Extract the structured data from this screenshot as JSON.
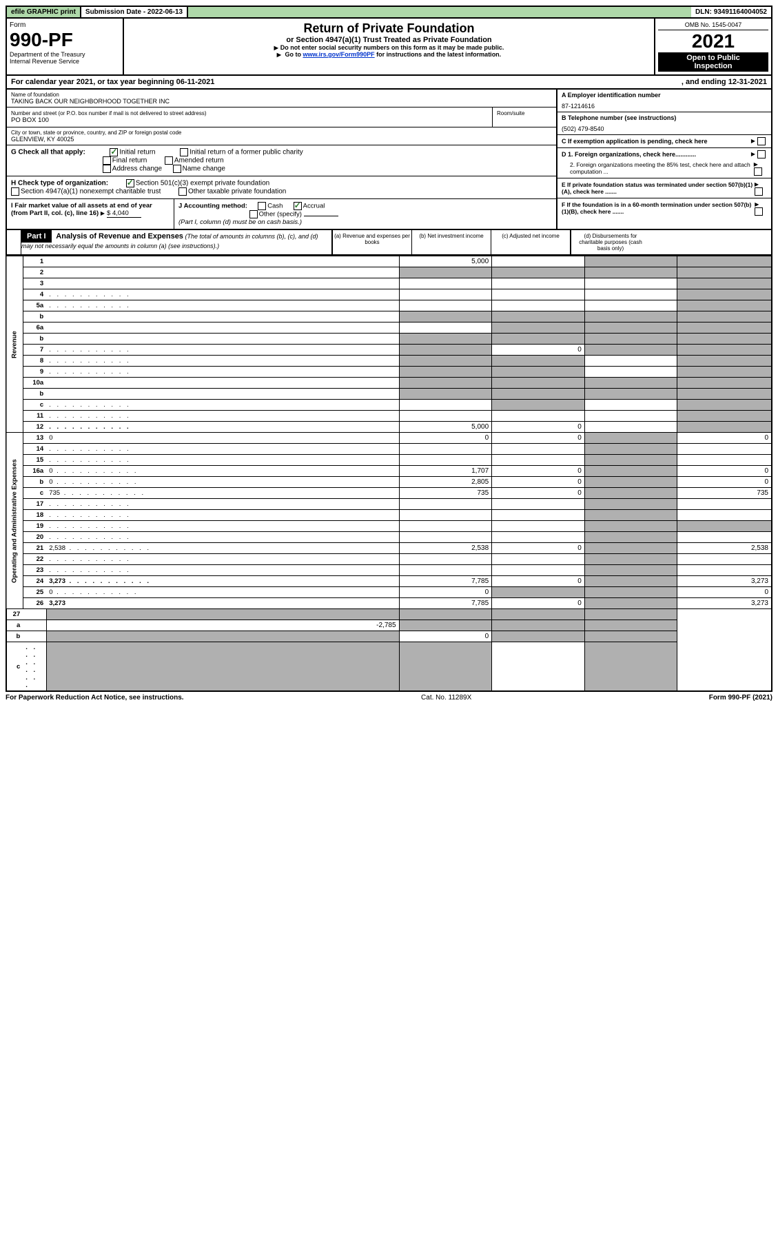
{
  "topbar": {
    "efile": "efile GRAPHIC print",
    "submission_label": "Submission Date - ",
    "submission_date": "2022-06-13",
    "dln_label": "DLN: ",
    "dln": "93491164004052"
  },
  "header": {
    "form_word": "Form",
    "form_num": "990-PF",
    "dept1": "Department of the Treasury",
    "dept2": "Internal Revenue Service",
    "title": "Return of Private Foundation",
    "subtitle": "or Section 4947(a)(1) Trust Treated as Private Foundation",
    "note1": "Do not enter social security numbers on this form as it may be made public.",
    "note2_a": "Go to ",
    "note2_link": "www.irs.gov/Form990PF",
    "note2_b": " for instructions and the latest information.",
    "omb": "OMB No. 1545-0047",
    "year": "2021",
    "open1": "Open to Public",
    "open2": "Inspection"
  },
  "calendar": {
    "text_a": "For calendar year 2021, or tax year beginning ",
    "begin": "06-11-2021",
    "text_b": ", and ending ",
    "end": "12-31-2021"
  },
  "foundation": {
    "name_label": "Name of foundation",
    "name": "TAKING BACK OUR NEIGHBORHOOD TOGETHER INC",
    "addr_label": "Number and street (or P.O. box number if mail is not delivered to street address)",
    "room_label": "Room/suite",
    "addr": "PO BOX 100",
    "city_label": "City or town, state or province, country, and ZIP or foreign postal code",
    "city": "GLENVIEW, KY  40025",
    "ein_label": "A Employer identification number",
    "ein": "87-1214616",
    "phone_label": "B Telephone number (see instructions)",
    "phone": "(502) 479-8540",
    "c_label": "C If exemption application is pending, check here",
    "d1": "D 1. Foreign organizations, check here............",
    "d2": "2. Foreign organizations meeting the 85% test, check here and attach computation ...",
    "e_label": "E  If private foundation status was terminated under section 507(b)(1)(A), check here .......",
    "f_label": "F  If the foundation is in a 60-month termination under section 507(b)(1)(B), check here .......",
    "g_label": "G Check all that apply:",
    "g_initial": "Initial return",
    "g_initial_former": "Initial return of a former public charity",
    "g_final": "Final return",
    "g_amended": "Amended return",
    "g_addr_change": "Address change",
    "g_name_change": "Name change",
    "h_label": "H Check type of organization:",
    "h_501c3": "Section 501(c)(3) exempt private foundation",
    "h_4947": "Section 4947(a)(1) nonexempt charitable trust",
    "h_other": "Other taxable private foundation",
    "i_label": "I Fair market value of all assets at end of year (from Part II, col. (c), line 16)",
    "i_amount": "$  4,040",
    "j_label": "J Accounting method:",
    "j_cash": "Cash",
    "j_accrual": "Accrual",
    "j_other": "Other (specify)",
    "j_note": "(Part I, column (d) must be on cash basis.)"
  },
  "part1": {
    "label": "Part I",
    "title": "Analysis of Revenue and Expenses",
    "note": "(The total of amounts in columns (b), (c), and (d) may not necessarily equal the amounts in column (a) (see instructions).)",
    "col_a": "(a) Revenue and expenses per books",
    "col_b": "(b) Net investment income",
    "col_c": "(c) Adjusted net income",
    "col_d": "(d) Disbursements for charitable purposes (cash basis only)"
  },
  "sections": {
    "revenue": "Revenue",
    "expenses": "Operating and Administrative Expenses"
  },
  "rows": [
    {
      "n": "1",
      "d": "",
      "a": "5,000",
      "b": "",
      "c": "",
      "sh": [
        "c",
        "d"
      ]
    },
    {
      "n": "2",
      "d": "",
      "a": "",
      "b": "",
      "c": "",
      "sh": [
        "a",
        "b",
        "c",
        "d"
      ],
      "bold_not": true
    },
    {
      "n": "3",
      "d": "",
      "a": "",
      "b": "",
      "c": "",
      "sh": [
        "d"
      ]
    },
    {
      "n": "4",
      "d": "",
      "a": "",
      "b": "",
      "c": "",
      "sh": [
        "d"
      ],
      "dots": true
    },
    {
      "n": "5a",
      "d": "",
      "a": "",
      "b": "",
      "c": "",
      "sh": [
        "d"
      ],
      "dots": true
    },
    {
      "n": "b",
      "d": "",
      "a": "",
      "b": "",
      "c": "",
      "sh": [
        "a",
        "b",
        "c",
        "d"
      ]
    },
    {
      "n": "6a",
      "d": "",
      "a": "",
      "b": "",
      "c": "",
      "sh": [
        "b",
        "c",
        "d"
      ]
    },
    {
      "n": "b",
      "d": "",
      "a": "",
      "b": "",
      "c": "",
      "sh": [
        "a",
        "b",
        "c",
        "d"
      ]
    },
    {
      "n": "7",
      "d": "",
      "a": "",
      "b": "0",
      "c": "",
      "sh": [
        "a",
        "c",
        "d"
      ],
      "dots": true
    },
    {
      "n": "8",
      "d": "",
      "a": "",
      "b": "",
      "c": "",
      "sh": [
        "a",
        "b",
        "d"
      ],
      "dots": true
    },
    {
      "n": "9",
      "d": "",
      "a": "",
      "b": "",
      "c": "",
      "sh": [
        "a",
        "b",
        "d"
      ],
      "dots": true
    },
    {
      "n": "10a",
      "d": "",
      "a": "",
      "b": "",
      "c": "",
      "sh": [
        "a",
        "b",
        "c",
        "d"
      ]
    },
    {
      "n": "b",
      "d": "",
      "a": "",
      "b": "",
      "c": "",
      "sh": [
        "a",
        "b",
        "c",
        "d"
      ]
    },
    {
      "n": "c",
      "d": "",
      "a": "",
      "b": "",
      "c": "",
      "sh": [
        "b",
        "d"
      ],
      "dots": true
    },
    {
      "n": "11",
      "d": "",
      "a": "",
      "b": "",
      "c": "",
      "sh": [
        "d"
      ],
      "dots": true
    },
    {
      "n": "12",
      "d": "",
      "a": "5,000",
      "b": "0",
      "c": "",
      "sh": [
        "d"
      ],
      "bold": true,
      "dots": true
    }
  ],
  "exp_rows": [
    {
      "n": "13",
      "d": "0",
      "a": "0",
      "b": "0",
      "c": "",
      "sh": [
        "c"
      ]
    },
    {
      "n": "14",
      "d": "",
      "a": "",
      "b": "",
      "c": "",
      "sh": [
        "c"
      ],
      "dots": true
    },
    {
      "n": "15",
      "d": "",
      "a": "",
      "b": "",
      "c": "",
      "sh": [
        "c"
      ],
      "dots": true
    },
    {
      "n": "16a",
      "d": "0",
      "a": "1,707",
      "b": "0",
      "c": "",
      "sh": [
        "c"
      ],
      "dots": true
    },
    {
      "n": "b",
      "d": "0",
      "a": "2,805",
      "b": "0",
      "c": "",
      "sh": [
        "c"
      ],
      "dots": true
    },
    {
      "n": "c",
      "d": "735",
      "a": "735",
      "b": "0",
      "c": "",
      "sh": [
        "c"
      ],
      "dots": true
    },
    {
      "n": "17",
      "d": "",
      "a": "",
      "b": "",
      "c": "",
      "sh": [
        "c"
      ],
      "dots": true
    },
    {
      "n": "18",
      "d": "",
      "a": "",
      "b": "",
      "c": "",
      "sh": [
        "c"
      ],
      "dots": true
    },
    {
      "n": "19",
      "d": "",
      "a": "",
      "b": "",
      "c": "",
      "sh": [
        "c",
        "d"
      ],
      "dots": true
    },
    {
      "n": "20",
      "d": "",
      "a": "",
      "b": "",
      "c": "",
      "sh": [
        "c"
      ],
      "dots": true
    },
    {
      "n": "21",
      "d": "2,538",
      "a": "2,538",
      "b": "0",
      "c": "",
      "sh": [
        "c"
      ],
      "dots": true
    },
    {
      "n": "22",
      "d": "",
      "a": "",
      "b": "",
      "c": "",
      "sh": [
        "c"
      ],
      "dots": true
    },
    {
      "n": "23",
      "d": "",
      "a": "",
      "b": "",
      "c": "",
      "sh": [
        "c"
      ],
      "dots": true
    },
    {
      "n": "24",
      "d": "3,273",
      "a": "7,785",
      "b": "0",
      "c": "",
      "sh": [
        "c"
      ],
      "bold": true,
      "dots": true
    },
    {
      "n": "25",
      "d": "0",
      "a": "0",
      "b": "",
      "c": "",
      "sh": [
        "b",
        "c"
      ],
      "dots": true
    },
    {
      "n": "26",
      "d": "3,273",
      "a": "7,785",
      "b": "0",
      "c": "",
      "sh": [
        "c"
      ],
      "bold": true
    }
  ],
  "bottom_rows": [
    {
      "n": "27",
      "d": "",
      "a": "",
      "b": "",
      "c": "",
      "sh": [
        "a",
        "b",
        "c",
        "d"
      ]
    },
    {
      "n": "a",
      "d": "",
      "a": "-2,785",
      "b": "",
      "c": "",
      "sh": [
        "b",
        "c",
        "d"
      ],
      "bold": true
    },
    {
      "n": "b",
      "d": "",
      "a": "",
      "b": "0",
      "c": "",
      "sh": [
        "a",
        "c",
        "d"
      ],
      "bold": true
    },
    {
      "n": "c",
      "d": "",
      "a": "",
      "b": "",
      "c": "",
      "sh": [
        "a",
        "b",
        "d"
      ],
      "bold": true,
      "dots": true
    }
  ],
  "footer": {
    "left": "For Paperwork Reduction Act Notice, see instructions.",
    "center": "Cat. No. 11289X",
    "right": "Form 990-PF (2021)"
  }
}
